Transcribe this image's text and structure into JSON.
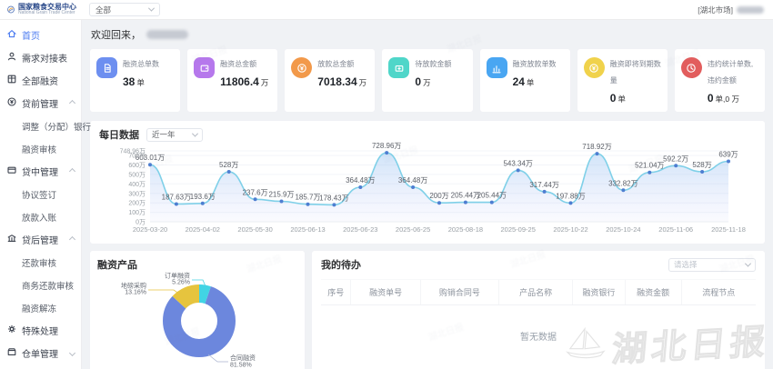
{
  "header": {
    "logo_title": "国家粮食交易中心",
    "logo_subtitle": "National Grain Trade Center",
    "filter_value": "全部",
    "market_label": "[湖北市场]"
  },
  "sidebar": {
    "items": [
      {
        "key": "home",
        "label": "首页",
        "icon": "home",
        "active": true
      },
      {
        "key": "demand-table",
        "label": "需求对接表",
        "icon": "person"
      },
      {
        "key": "all-financing",
        "label": "全部融资",
        "icon": "grid"
      },
      {
        "key": "pre-loan-mgmt",
        "label": "贷前管理",
        "icon": "loan",
        "expanded": true,
        "children": [
          {
            "key": "adjust-bank",
            "label": "调整（分配）银行"
          },
          {
            "key": "financing-review",
            "label": "融资审核"
          }
        ]
      },
      {
        "key": "mid-loan-mgmt",
        "label": "贷中管理",
        "icon": "card",
        "expanded": true,
        "children": [
          {
            "key": "agreement-sign",
            "label": "协议签订"
          },
          {
            "key": "disbursement-entry",
            "label": "放款入账"
          }
        ]
      },
      {
        "key": "post-loan-mgmt",
        "label": "贷后管理",
        "icon": "bank",
        "expanded": true,
        "children": [
          {
            "key": "repayment-review",
            "label": "还款审核"
          },
          {
            "key": "business-repayment-review",
            "label": "商务还款审核"
          },
          {
            "key": "financing-unfreeze",
            "label": "融资解冻"
          }
        ]
      },
      {
        "key": "special-handling",
        "label": "特殊处理",
        "icon": "gear"
      },
      {
        "key": "warehouse-receipt-mgmt",
        "label": "仓单管理",
        "icon": "box",
        "expanded": false,
        "children": []
      }
    ]
  },
  "main": {
    "welcome": "欢迎回来，",
    "stats": [
      {
        "title": "融资总单数",
        "value": "38",
        "unit": "单",
        "color": "#6d8ff0",
        "icon": "doc",
        "shape": "square"
      },
      {
        "title": "融资总金额",
        "value": "11806.4",
        "unit": "万",
        "color": "#b678ec",
        "icon": "wallet",
        "shape": "square"
      },
      {
        "title": "放款总金额",
        "value": "7018.34",
        "unit": "万",
        "color": "#f2994a",
        "icon": "coin",
        "shape": "circle"
      },
      {
        "title": "待放款金额",
        "value": "0",
        "unit": "万",
        "color": "#4fd6c9",
        "icon": "money",
        "shape": "square"
      },
      {
        "title": "融资放款单数",
        "value": "24",
        "unit": "单",
        "color": "#49a6f2",
        "icon": "chart",
        "shape": "square"
      },
      {
        "title": "融资即将到期数量",
        "value": "0",
        "unit": "单",
        "color": "#f0d24b",
        "icon": "coin",
        "shape": "circle"
      },
      {
        "title": "违约统计单数,违约金额",
        "value": "0",
        "unit": "单,0 万",
        "color": "#e25d5d",
        "icon": "clock",
        "shape": "circle"
      }
    ]
  },
  "chart_data": [
    {
      "type": "area",
      "title": "每日数据",
      "range_selector": "近一年",
      "unit": "万",
      "values": [
        603.01,
        187.63,
        193.6,
        528,
        237.6,
        215.9,
        185.7,
        178.43,
        364.48,
        728.96,
        364.48,
        200,
        205.44,
        205.44,
        543.34,
        317.44,
        197.88,
        718.92,
        332.82,
        521.04,
        592.2,
        528,
        639
      ],
      "point_labels": [
        "603.01万",
        "187.63万",
        "193.6万",
        "528万",
        "237.6万",
        "215.9万",
        "185.7万",
        "178.43万",
        "364.48万",
        "728.96万",
        "364.48万",
        "200万",
        "205.44万",
        "205.44万",
        "543.34万",
        "317.44万",
        "197.88万",
        "718.92万",
        "332.82万",
        "521.04万",
        "592.2万",
        "528万",
        "639万"
      ],
      "x_tick_labels": [
        "2025-03-20",
        "2025-04-02",
        "2025-05-30",
        "2025-06-13",
        "2025-06-23",
        "2025-06-25",
        "2025-08-18",
        "2025-09-25",
        "2025-10-22",
        "2025-10-24",
        "2025-11-06",
        "2025-11-18"
      ],
      "x_tick_every": 2,
      "y_ticks": [
        [
          0,
          "0万"
        ],
        [
          100,
          "100万"
        ],
        [
          200,
          "200万"
        ],
        [
          300,
          "300万"
        ],
        [
          400,
          "400万"
        ],
        [
          500,
          "500万"
        ],
        [
          600,
          "600万"
        ],
        [
          700,
          "700万"
        ],
        [
          748.96,
          "748.96万"
        ]
      ],
      "ylim": [
        0,
        748.96
      ],
      "grid": true,
      "line_color": "#7fd0e8",
      "point_color": "#4e7ed1"
    },
    {
      "type": "pie",
      "title": "融资产品",
      "slices": [
        {
          "label": "合同融资",
          "pct": 81.58,
          "pct_label": "81.58%",
          "color": "#6c87dd"
        },
        {
          "label": "地磅采购",
          "pct": 13.16,
          "pct_label": "13.16%",
          "color": "#e6c43e"
        },
        {
          "label": "订单融资",
          "pct": 5.26,
          "pct_label": "5.26%",
          "color": "#41d4e4"
        }
      ],
      "draw_order_clockwise_from_top": [
        2,
        0,
        1
      ],
      "legend_position": "bottom"
    }
  ],
  "todo": {
    "title": "我的待办",
    "select_placeholder": "请选择",
    "columns": [
      "序号",
      "融资单号",
      "购销合同号",
      "产品名称",
      "融资银行",
      "融资金额",
      "流程节点"
    ],
    "empty_text": "暂无数据"
  },
  "watermark": {
    "text": "湖北日报"
  }
}
